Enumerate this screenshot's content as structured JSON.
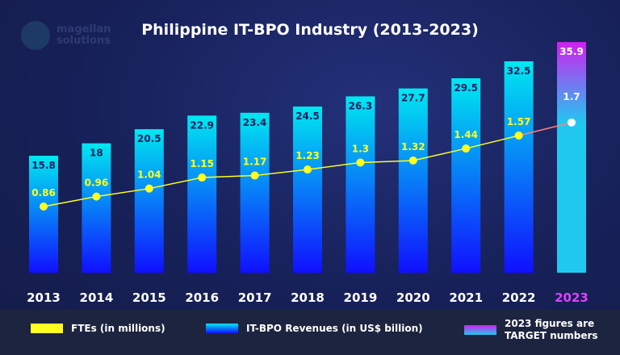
{
  "logo": {
    "line1": "magellan",
    "line2": "solutions"
  },
  "chart_data": {
    "type": "bar",
    "title": "Philippine IT-BPO Industry (2013-2023)",
    "categories": [
      "2013",
      "2014",
      "2015",
      "2016",
      "2017",
      "2018",
      "2019",
      "2020",
      "2021",
      "2022",
      "2023"
    ],
    "series": [
      {
        "name": "IT-BPO Revenues (in US$ billion)",
        "type": "bar",
        "values": [
          15.8,
          18,
          20.5,
          22.9,
          23.4,
          24.5,
          26.3,
          27.7,
          29.5,
          32.5,
          35.9
        ]
      },
      {
        "name": "FTEs (in millions)",
        "type": "line",
        "values": [
          0.86,
          0.96,
          1.04,
          1.15,
          1.17,
          1.23,
          1.3,
          1.32,
          1.44,
          1.57,
          1.7
        ]
      }
    ],
    "note": "2023 figures are TARGET numbers",
    "colors": {
      "bar_top": "#00e8f0",
      "bar_bottom": "#1010ff",
      "target_top": "#d020f0",
      "target_bottom": "#20c8f0",
      "line": "#ffff20",
      "target_line": "#ff8080",
      "target_label": "#e040ff"
    },
    "grid": false,
    "legend": "bottom"
  }
}
